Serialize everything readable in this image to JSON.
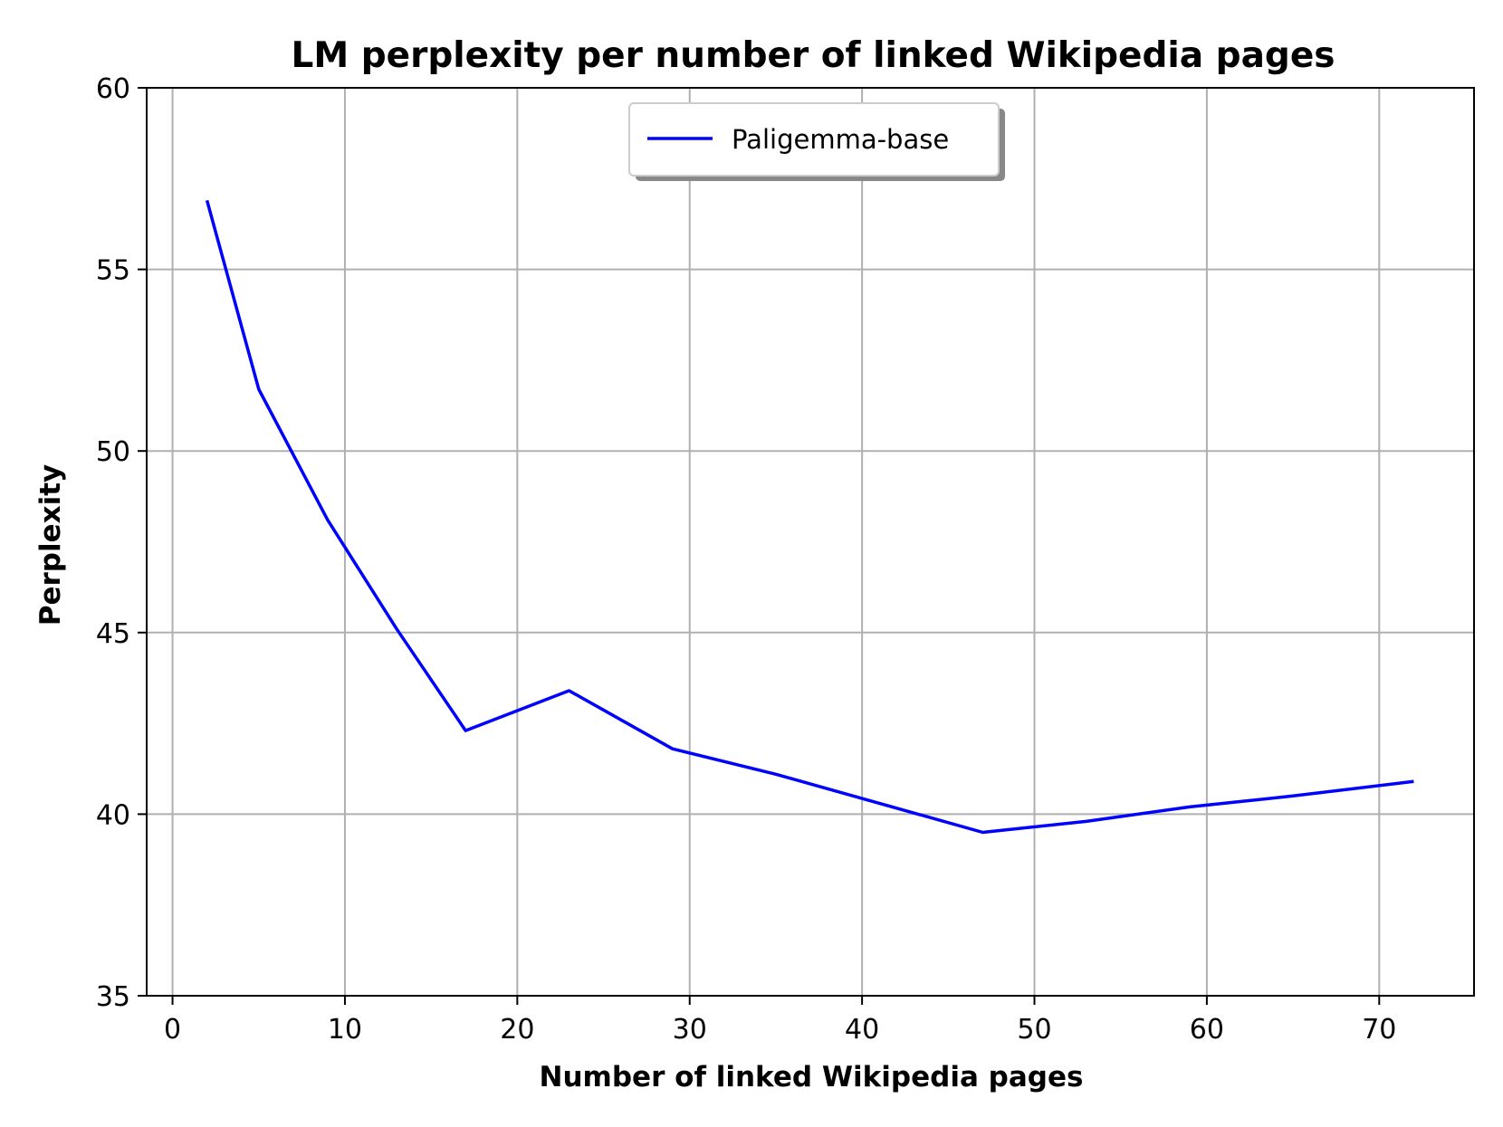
{
  "chart_data": {
    "type": "line",
    "title": "LM perplexity per number of linked Wikipedia pages",
    "xlabel": "Number of linked Wikipedia pages",
    "ylabel": "Perplexity",
    "xlim": [
      -1.5,
      75.5
    ],
    "ylim": [
      35,
      60
    ],
    "xticks": [
      0,
      10,
      20,
      30,
      40,
      50,
      60,
      70
    ],
    "yticks": [
      35,
      40,
      45,
      50,
      55,
      60
    ],
    "grid": true,
    "legend_position": "upper center",
    "series": [
      {
        "name": "Paligemma-base",
        "color": "#0000ff",
        "x": [
          2,
          5,
          9,
          13,
          17,
          23,
          29,
          35,
          41,
          47,
          53,
          59,
          65,
          72
        ],
        "y": [
          56.9,
          51.7,
          48.1,
          45.1,
          42.3,
          43.4,
          41.8,
          41.1,
          40.3,
          39.5,
          39.8,
          40.2,
          40.5,
          40.9
        ]
      }
    ]
  }
}
